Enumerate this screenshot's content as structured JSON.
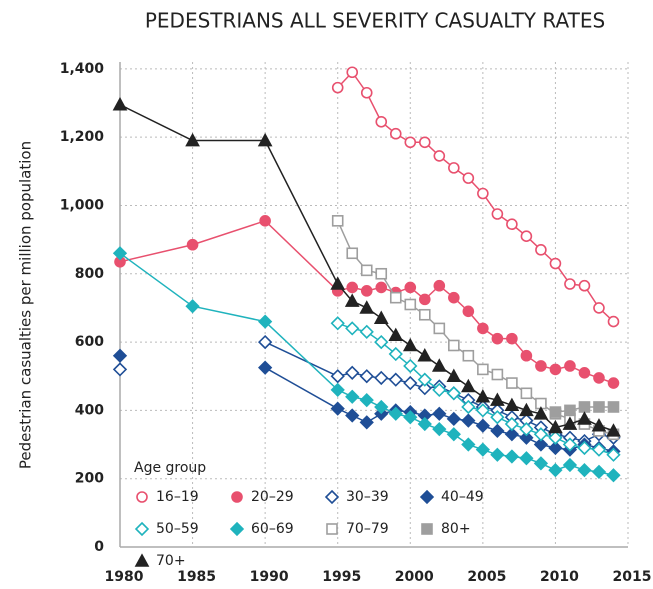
{
  "chart_data": {
    "type": "line",
    "title": "PEDESTRIANS ALL SEVERITY CASUALTY RATES",
    "y_label": "Pedestrian casualties per million population",
    "legend_title": "Age group",
    "x": [
      1980,
      1985,
      1990,
      1995,
      1996,
      1997,
      1998,
      1999,
      2000,
      2001,
      2002,
      2003,
      2004,
      2005,
      2006,
      2007,
      2008,
      2009,
      2010,
      2011,
      2012,
      2013,
      2014
    ],
    "xlim": [
      1980,
      2015
    ],
    "xticks": [
      1980,
      1985,
      1990,
      1995,
      2000,
      2005,
      2010,
      2015
    ],
    "ylim": [
      0,
      1420
    ],
    "yticks": [
      0,
      200,
      400,
      600,
      800,
      {
        "value": 1000,
        "label": "1,000"
      },
      {
        "value": 1200,
        "label": "1,200"
      },
      {
        "value": 1400,
        "label": "1,400"
      }
    ],
    "grid": true,
    "series": [
      {
        "name": "16–19",
        "color": "#e8506e",
        "marker": "circle",
        "filled": false,
        "values": [
          null,
          null,
          null,
          1345,
          1390,
          1330,
          1245,
          1210,
          1185,
          1185,
          1145,
          1110,
          1080,
          1035,
          975,
          945,
          910,
          870,
          830,
          770,
          765,
          700,
          660
        ]
      },
      {
        "name": "20–29",
        "color": "#e8506e",
        "marker": "circle",
        "filled": true,
        "values": [
          835,
          885,
          955,
          750,
          760,
          750,
          760,
          745,
          760,
          725,
          765,
          730,
          690,
          640,
          610,
          610,
          560,
          530,
          520,
          530,
          510,
          495,
          480
        ]
      },
      {
        "name": "30–39",
        "color": "#1f4e96",
        "marker": "diamond",
        "filled": false,
        "values": [
          520,
          null,
          600,
          500,
          510,
          500,
          495,
          490,
          480,
          465,
          470,
          450,
          430,
          410,
          400,
          380,
          370,
          350,
          330,
          320,
          310,
          330,
          320
        ]
      },
      {
        "name": "40–49",
        "color": "#1f4e96",
        "marker": "diamond",
        "filled": true,
        "values": [
          560,
          null,
          525,
          405,
          385,
          365,
          390,
          400,
          395,
          385,
          390,
          375,
          370,
          355,
          340,
          330,
          320,
          300,
          290,
          285,
          300,
          290,
          280
        ]
      },
      {
        "name": "50–59",
        "color": "#1fb3bd",
        "marker": "diamond",
        "filled": false,
        "values": [
          null,
          null,
          null,
          655,
          640,
          630,
          600,
          565,
          530,
          490,
          460,
          450,
          410,
          400,
          380,
          360,
          345,
          330,
          320,
          300,
          290,
          285,
          270
        ]
      },
      {
        "name": "60–69",
        "color": "#1fb3bd",
        "marker": "diamond",
        "filled": true,
        "values": [
          860,
          705,
          660,
          460,
          440,
          430,
          410,
          390,
          380,
          360,
          345,
          330,
          300,
          285,
          270,
          265,
          260,
          245,
          225,
          240,
          225,
          220,
          210
        ]
      },
      {
        "name": "70–79",
        "color": "#9e9e9e",
        "marker": "square",
        "filled": false,
        "values": [
          null,
          null,
          null,
          955,
          860,
          810,
          800,
          730,
          710,
          680,
          640,
          590,
          560,
          520,
          505,
          480,
          450,
          420,
          390,
          375,
          360,
          340,
          330
        ]
      },
      {
        "name": "80+",
        "color": "#9e9e9e",
        "marker": "square",
        "filled": true,
        "values": [
          null,
          null,
          null,
          null,
          null,
          null,
          null,
          null,
          null,
          null,
          null,
          null,
          null,
          null,
          null,
          null,
          null,
          null,
          395,
          400,
          410,
          410,
          410
        ]
      },
      {
        "name": "70+",
        "color": "#222222",
        "marker": "triangle",
        "filled": true,
        "values": [
          1295,
          1190,
          1190,
          770,
          720,
          700,
          670,
          620,
          590,
          560,
          530,
          500,
          470,
          440,
          430,
          415,
          400,
          390,
          350,
          360,
          375,
          355,
          340
        ]
      }
    ]
  }
}
